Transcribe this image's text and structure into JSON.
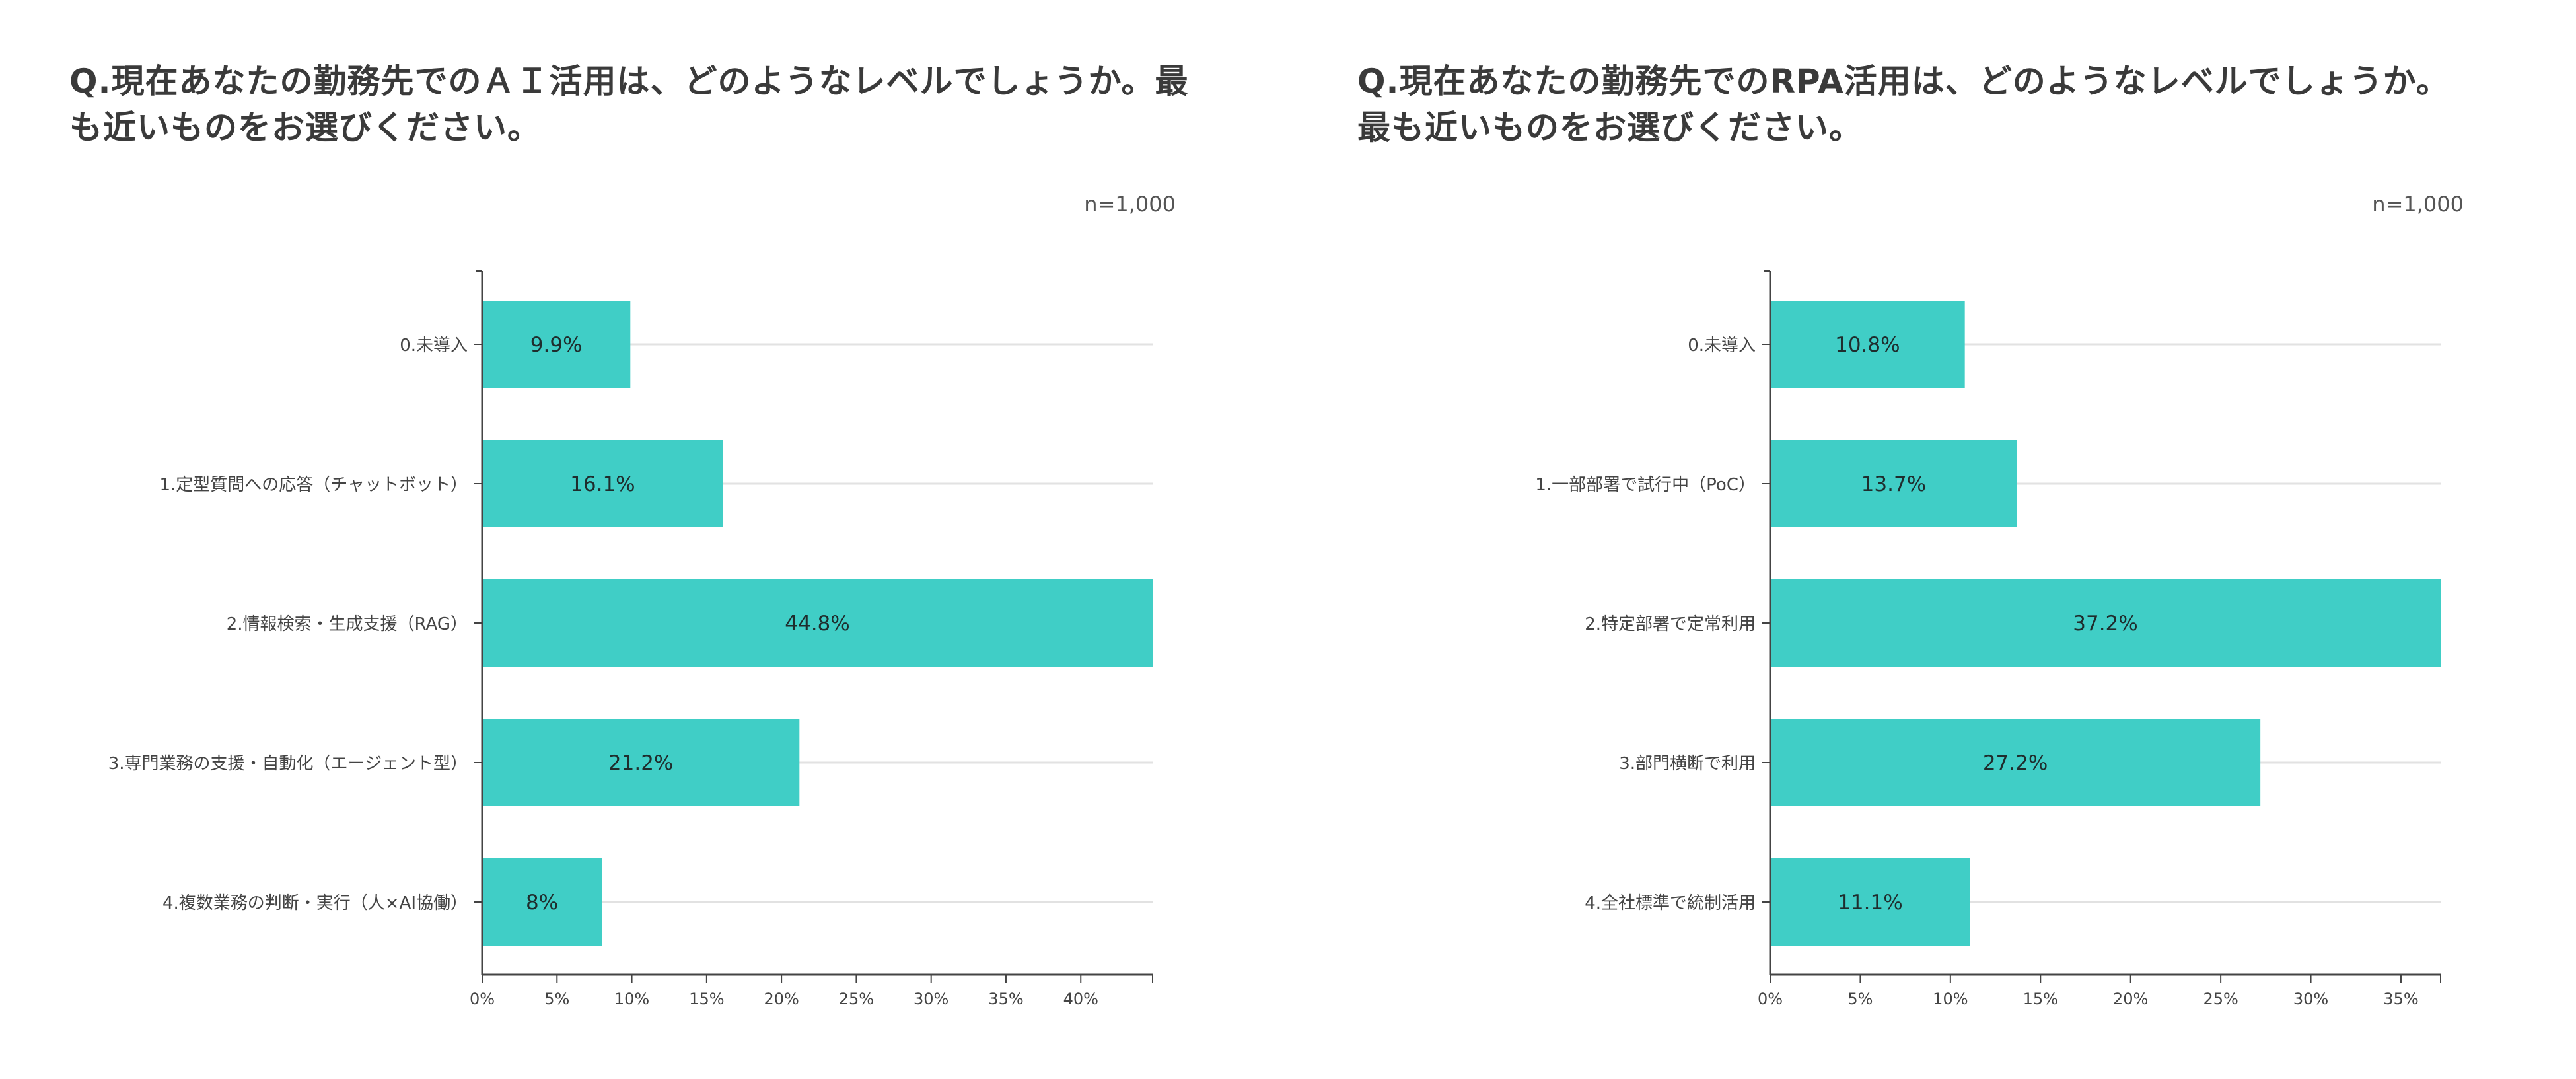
{
  "chart_data": [
    {
      "type": "bar",
      "orientation": "horizontal",
      "title": "Q.現在あなたの勤務先でのＡＩ活用は、どのようなレベルでしょうか。最も近いものをお選びください。",
      "sample_size": "n=1,000",
      "categories": [
        "0.未導入",
        "1.定型質問への応答（チャットボット）",
        "2.情報検索・生成支援（RAG）",
        "3.専門業務の支援・自動化（エージェント型）",
        "4.複数業務の判断・実行（人×AI協働）"
      ],
      "values": [
        9.9,
        16.1,
        44.8,
        21.2,
        8
      ],
      "value_labels": [
        "9.9%",
        "16.1%",
        "44.8%",
        "21.2%",
        "8%"
      ],
      "xlim": [
        0,
        44.8
      ],
      "xticks": [
        0,
        5,
        10,
        15,
        20,
        25,
        30,
        35,
        40
      ],
      "xtick_labels": [
        "0%",
        "5%",
        "10%",
        "15%",
        "20%",
        "25%",
        "30%",
        "35%",
        "40%"
      ],
      "bar_color": "#40cec6",
      "grid": true
    },
    {
      "type": "bar",
      "orientation": "horizontal",
      "title": "Q.現在あなたの勤務先でのRPA活用は、どのようなレベルでしょうか。最も近いものをお選びください。",
      "sample_size": "n=1,000",
      "categories": [
        "0.未導入",
        "1.一部部署で試行中（PoC）",
        "2.特定部署で定常利用",
        "3.部門横断で利用",
        "4.全社標準で統制活用"
      ],
      "values": [
        10.8,
        13.7,
        37.2,
        27.2,
        11.1
      ],
      "value_labels": [
        "10.8%",
        "13.7%",
        "37.2%",
        "27.2%",
        "11.1%"
      ],
      "xlim": [
        0,
        37.2
      ],
      "xticks": [
        0,
        5,
        10,
        15,
        20,
        25,
        30,
        35
      ],
      "xtick_labels": [
        "0%",
        "5%",
        "10%",
        "15%",
        "20%",
        "25%",
        "30%",
        "35%"
      ],
      "bar_color": "#40cec6",
      "grid": true
    }
  ]
}
